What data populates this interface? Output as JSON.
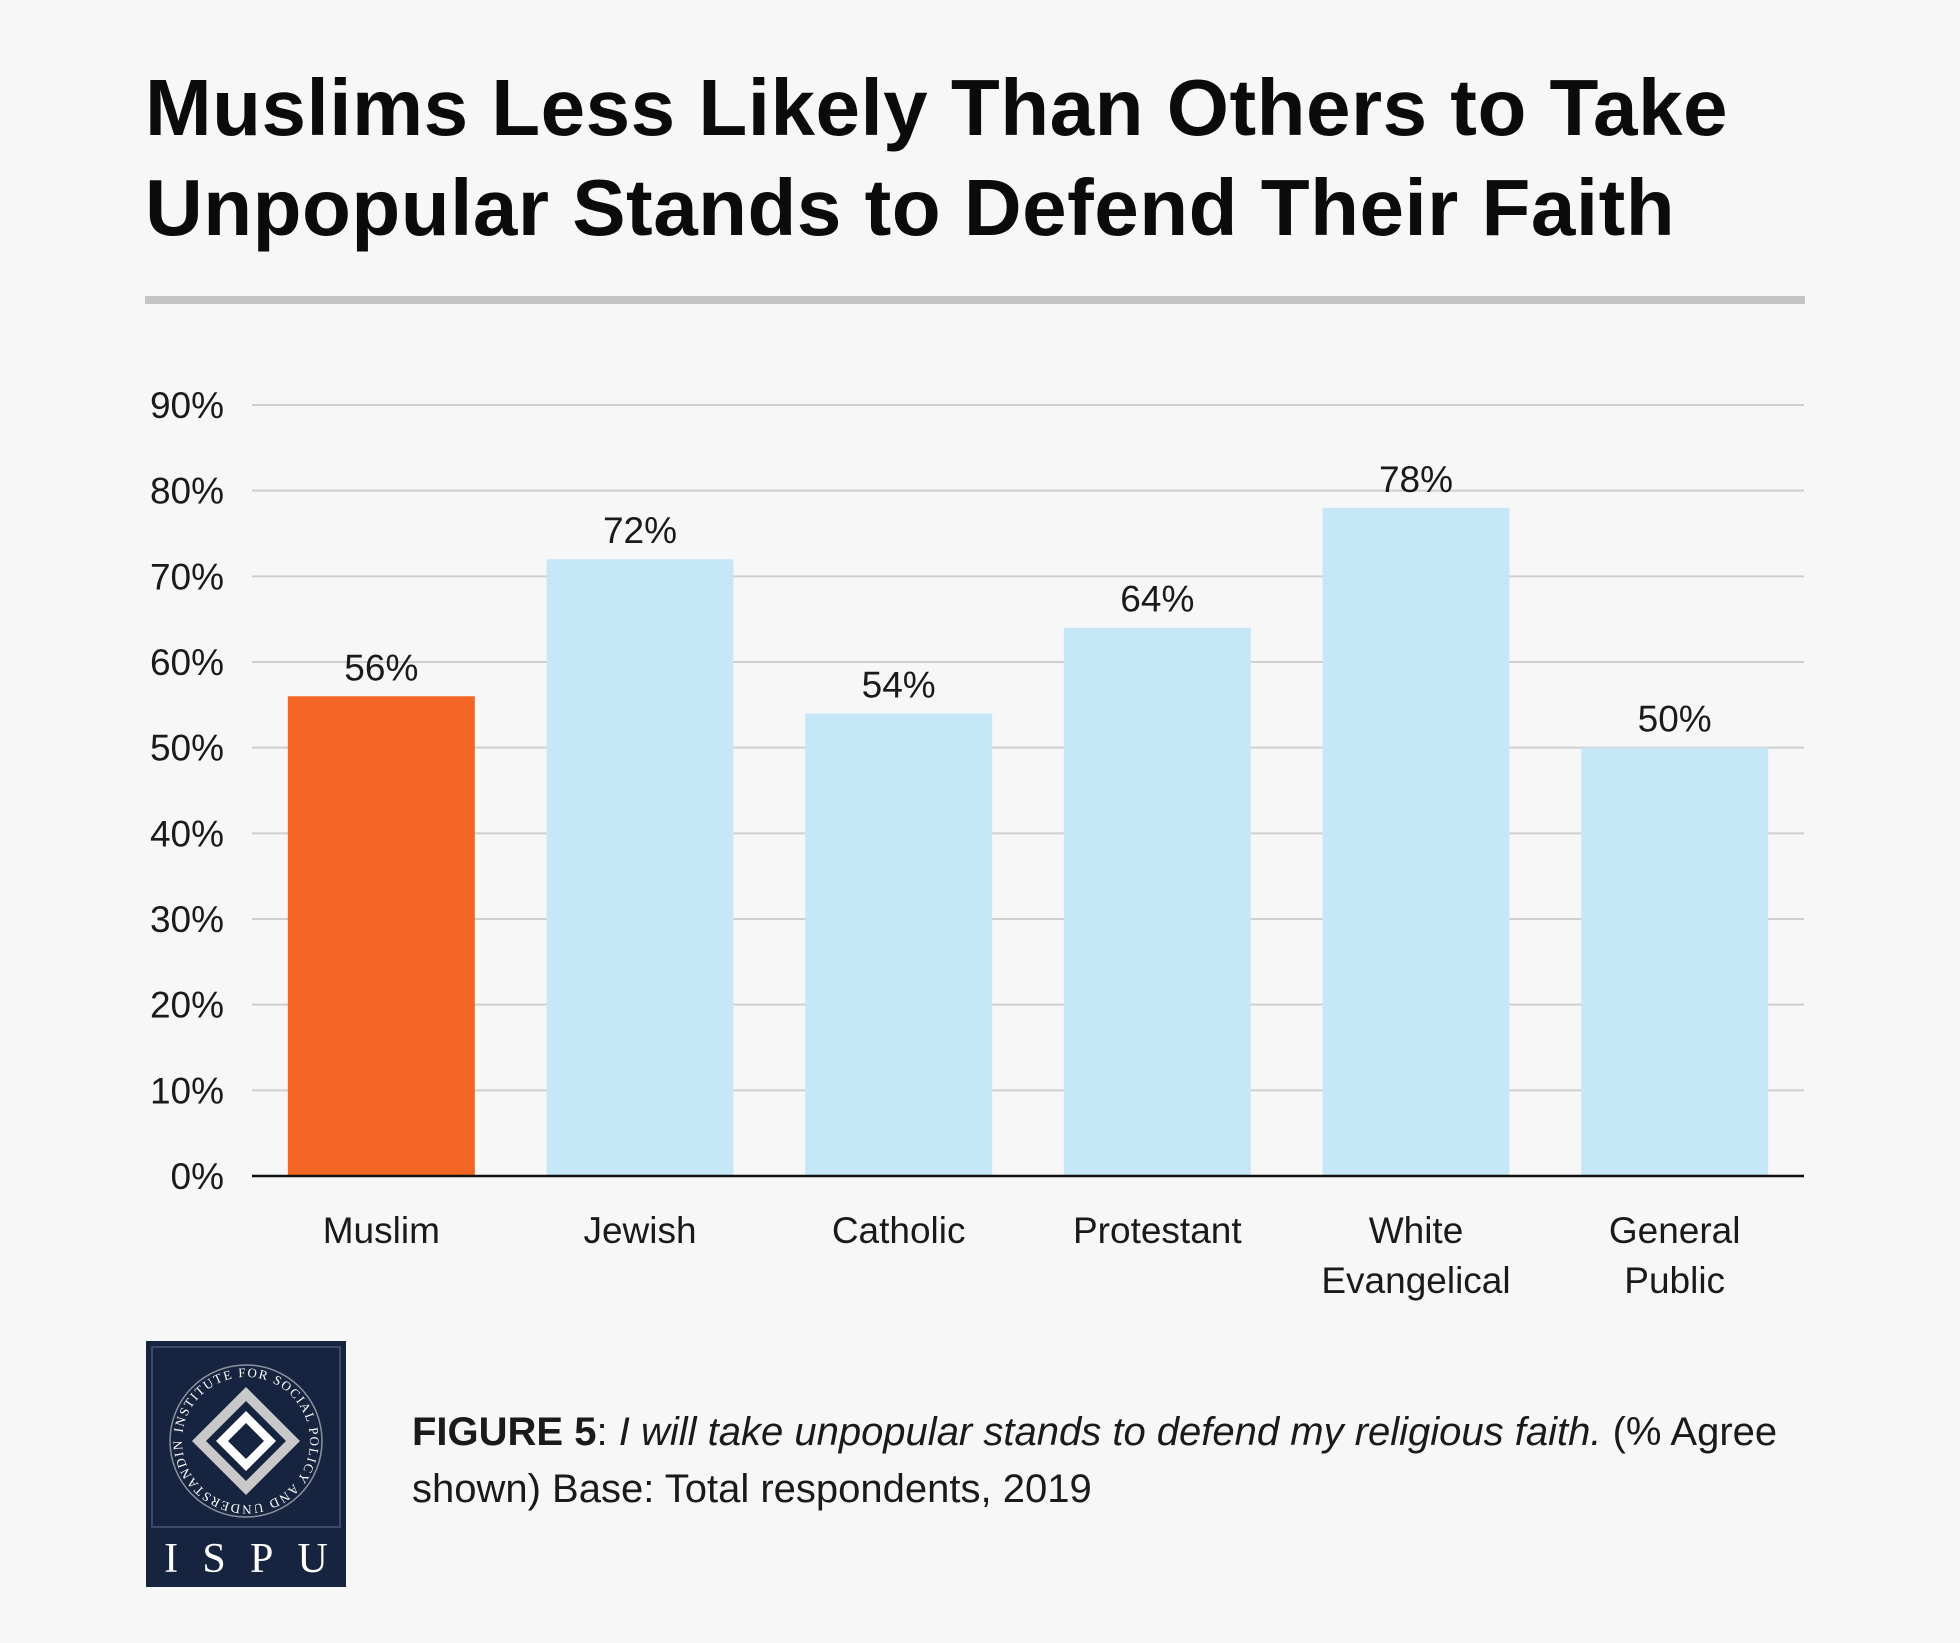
{
  "title": {
    "line1": "Muslims Less Likely Than Others to Take",
    "line2": "Unpopular Stands to Defend Their Faith"
  },
  "chart_data": {
    "type": "bar",
    "categories": [
      [
        "Muslim"
      ],
      [
        "Jewish"
      ],
      [
        "Catholic"
      ],
      [
        "Protestant"
      ],
      [
        "White",
        "Evangelical"
      ],
      [
        "General",
        "Public"
      ]
    ],
    "values": [
      56,
      72,
      54,
      64,
      78,
      50
    ],
    "value_labels": [
      "56%",
      "72%",
      "54%",
      "64%",
      "78%",
      "50%"
    ],
    "ylim": [
      0,
      90
    ],
    "yticks": [
      0,
      10,
      20,
      30,
      40,
      50,
      60,
      70,
      80,
      90
    ],
    "ytick_labels": [
      "0%",
      "10%",
      "20%",
      "30%",
      "40%",
      "50%",
      "60%",
      "70%",
      "80%",
      "90%"
    ],
    "grid": true,
    "colors": {
      "highlight": "#f26522",
      "default": "#c6e7f8",
      "grid": "#cfcfcf",
      "axis": "#111111"
    },
    "highlight_index": 0
  },
  "logo": {
    "ring_text": "INSTITUTE FOR SOCIAL POLICY AND UNDERSTANDING",
    "letters": [
      "I",
      "S",
      "P",
      "U"
    ]
  },
  "caption": {
    "lead": "FIGURE 5",
    "separator": ": ",
    "quote": "I will take unpopular stands to defend my religious faith.",
    "rest": " (% Agree shown) Base: Total respondents, 2019"
  }
}
